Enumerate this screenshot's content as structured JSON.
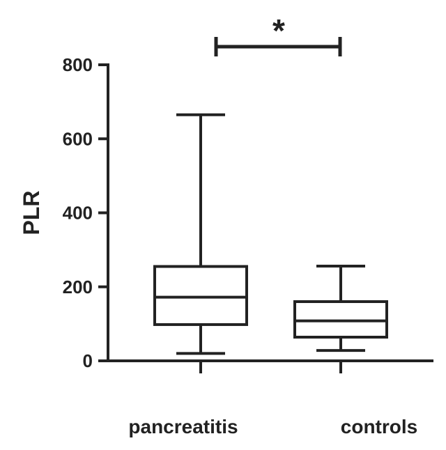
{
  "chart_data": {
    "type": "box",
    "ylabel": "PLR",
    "xlabel": "",
    "ylim": [
      0,
      800
    ],
    "yticks": [
      0,
      200,
      400,
      600,
      800
    ],
    "categories": [
      "pancreatitis",
      "controls"
    ],
    "boxes": [
      {
        "category": "pancreatitis",
        "min": 20,
        "q1": 98,
        "median": 172,
        "q3": 255,
        "max": 665
      },
      {
        "category": "controls",
        "min": 28,
        "q1": 64,
        "median": 108,
        "q3": 160,
        "max": 256
      }
    ],
    "significance": {
      "from": "pancreatitis",
      "to": "controls",
      "label": "*"
    },
    "grid": false,
    "colors": {
      "ink": "#222222",
      "background": "#ffffff"
    }
  }
}
